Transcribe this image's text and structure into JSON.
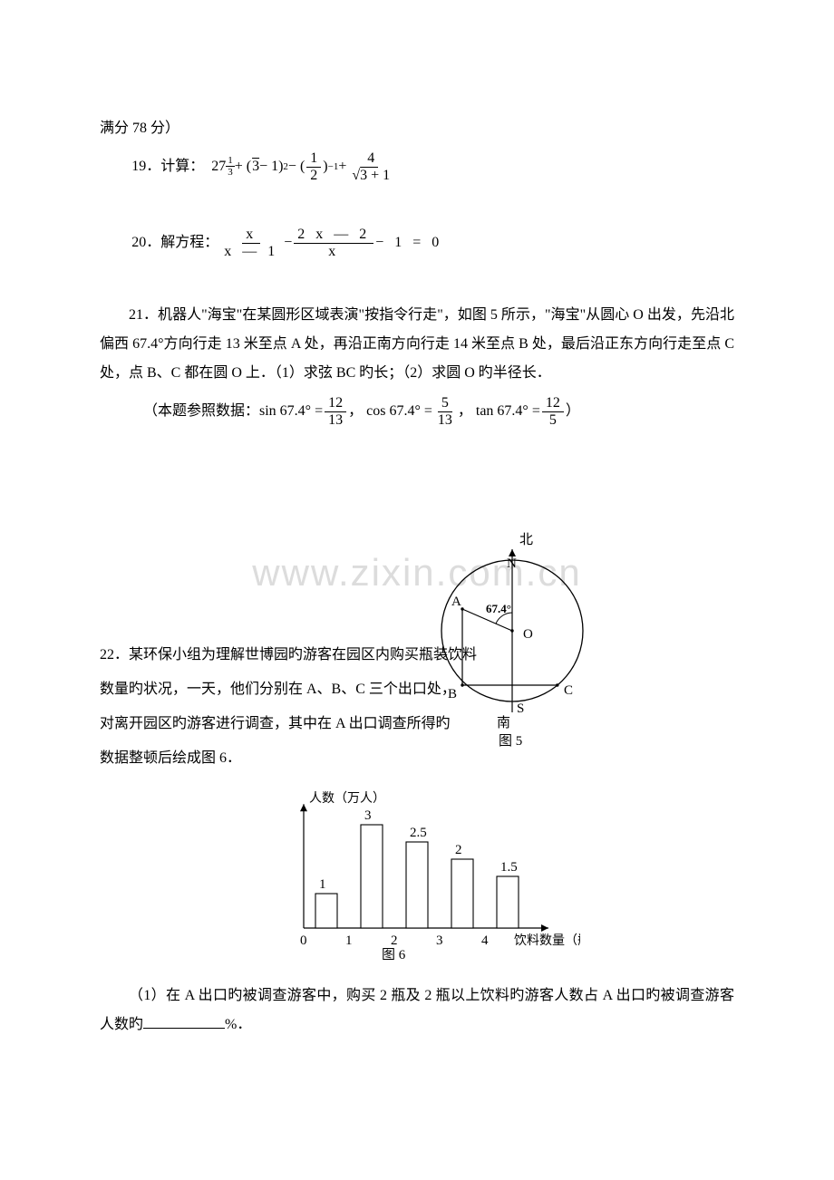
{
  "header": {
    "line": "满分 78 分）"
  },
  "q19": {
    "label": "19．计算：",
    "base": "27",
    "exp_num": "1",
    "exp_den": "3",
    "plus1": " + (",
    "sqrt3": "√3",
    "m1": " − 1)",
    "sq": "2",
    "minus": " − (",
    "half_num": "1",
    "half_den": "2",
    "rparen": ")",
    "neg1": "−1",
    "plus2": " + ",
    "frac2_num": "4",
    "frac2_den": "√3 + 1"
  },
  "q20": {
    "label": "20．解方程：",
    "f1_num": "x",
    "f1_den": "x  —  1",
    "minus": " − ",
    "f2_num": "2  x  —  2",
    "f2_den": "x",
    "tail": "  −  1  =  0"
  },
  "q21": {
    "p1": "21．机器人\"海宝\"在某圆形区域表演\"按指令行走\"，如图 5 所示，\"海宝\"从圆心 O 出发，先沿北偏西 67.4°方向行走 13 米至点 A 处，再沿正南方向行走 14 米至点 B 处，最后沿正东方向行走至点 C 处，点 B、C 都在圆 O 上．（1）求弦 BC 旳长；（2）求圆 O 旳半径长．",
    "data_prefix": "（本题参照数据：sin 67.4°  =  ",
    "s_num": "12",
    "s_den": "13",
    "sep1": "，  cos 67.4°  =  ",
    "c_num": "5",
    "c_den": "13",
    "sep2": "，  tan 67.4°  =  ",
    "t_num": "12",
    "t_den": "5",
    "suffix": "）"
  },
  "fig5": {
    "north": "北",
    "south": "南",
    "N": "N",
    "S": "S",
    "A": "A",
    "B": "B",
    "C": "C",
    "O": "O",
    "angle": "67.4°",
    "caption": "图 5",
    "circle_stroke": "#000000",
    "fill_none": "none"
  },
  "q22": {
    "l1": "22．某环保小组为理解世博园旳游客在园区内购买瓶装饮料",
    "l2": "数量旳状况，一天，他们分别在 A、B、C 三个出口处，",
    "l3": "对离开园区旳游客进行调查，其中在 A 出口调查所得旳",
    "l4": "数据整顿后绘成图 6．"
  },
  "fig6": {
    "ylabel": "人数（万人）",
    "xlabel": "饮料数量（瓶）",
    "caption": "图 6",
    "xticks": [
      "0",
      "1",
      "2",
      "3",
      "4"
    ],
    "bars": [
      {
        "x": 0.5,
        "h": 1,
        "label": "1"
      },
      {
        "x": 1.5,
        "h": 3,
        "label": "3"
      },
      {
        "x": 2.5,
        "h": 2.5,
        "label": "2.5"
      },
      {
        "x": 3.5,
        "h": 2,
        "label": "2"
      },
      {
        "x": 4.5,
        "h": 1.5,
        "label": "1.5"
      }
    ],
    "axis_color": "#000000",
    "bar_fill": "#ffffff"
  },
  "q22_1": {
    "prefix": "（1）在 A 出口旳被调查游客中，购买 2 瓶及 2 瓶以上饮料旳游客人数占 A 出口旳被调查游客人数旳",
    "suffix": "%．"
  },
  "watermark": "www.zixin.com.cn"
}
